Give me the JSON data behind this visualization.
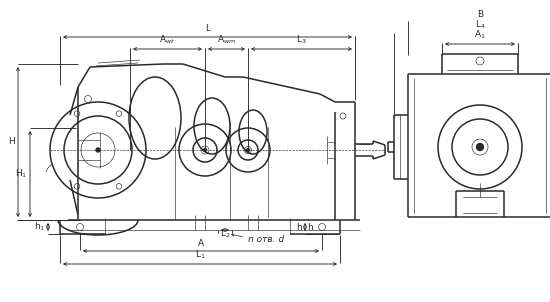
{
  "bg_color": "#ffffff",
  "line_color": "#2a2a2a",
  "dim_color": "#2a2a2a",
  "lw_main": 1.1,
  "lw_dim": 0.65,
  "lw_thin": 0.45,
  "font_size": 6.5,
  "fig_width": 5.5,
  "fig_height": 3.02,
  "labels": {
    "L": "L",
    "Awt": "A$_{wt}$",
    "Awm": "A$_{wm}$",
    "L3": "L$_{3}$",
    "L4": "L$_{4}$",
    "H": "H",
    "H1": "H$_{1}$",
    "h1": "h$_{1}$",
    "h": "h",
    "A": "A",
    "L1": "L$_{1}$",
    "L2": "L$_{2}$",
    "A1": "A$_{1}$",
    "B": "B",
    "n_otv_d": "n отв. d"
  }
}
